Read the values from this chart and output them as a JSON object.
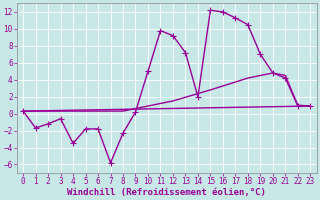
{
  "background_color": "#c8e8e8",
  "grid_color": "#ffffff",
  "line_color": "#990099",
  "xlabel": "Windchill (Refroidissement éolien,°C)",
  "xlim": [
    -0.5,
    23.5
  ],
  "ylim": [
    -7,
    13
  ],
  "xticks": [
    0,
    1,
    2,
    3,
    4,
    5,
    6,
    7,
    8,
    9,
    10,
    11,
    12,
    13,
    14,
    15,
    16,
    17,
    18,
    19,
    20,
    21,
    22,
    23
  ],
  "yticks": [
    -6,
    -4,
    -2,
    0,
    2,
    4,
    6,
    8,
    10,
    12
  ],
  "curve1_x": [
    0,
    1,
    2,
    3,
    4,
    5,
    6,
    7,
    8,
    9,
    10,
    11,
    12,
    13,
    14,
    15,
    16,
    17,
    18,
    19,
    20,
    21,
    22,
    23
  ],
  "curve1_y": [
    0.3,
    -1.7,
    -1.2,
    -0.6,
    -3.5,
    -1.8,
    -1.8,
    -5.8,
    -2.3,
    0.2,
    5.0,
    9.8,
    9.2,
    7.2,
    2.0,
    12.2,
    12.0,
    11.3,
    10.5,
    7.0,
    4.8,
    4.2,
    0.9,
    0.9
  ],
  "curve2_x": [
    0,
    23
  ],
  "curve2_y": [
    0.3,
    0.9
  ],
  "curve3_x": [
    0,
    8,
    12,
    15,
    18,
    20,
    21,
    22,
    23
  ],
  "curve3_y": [
    0.3,
    0.3,
    1.5,
    2.8,
    4.2,
    4.8,
    4.5,
    1.0,
    0.9
  ],
  "marker": "+",
  "markersize": 4,
  "linewidth": 1.0,
  "tick_fontsize": 5.5,
  "xlabel_fontsize": 6.5
}
